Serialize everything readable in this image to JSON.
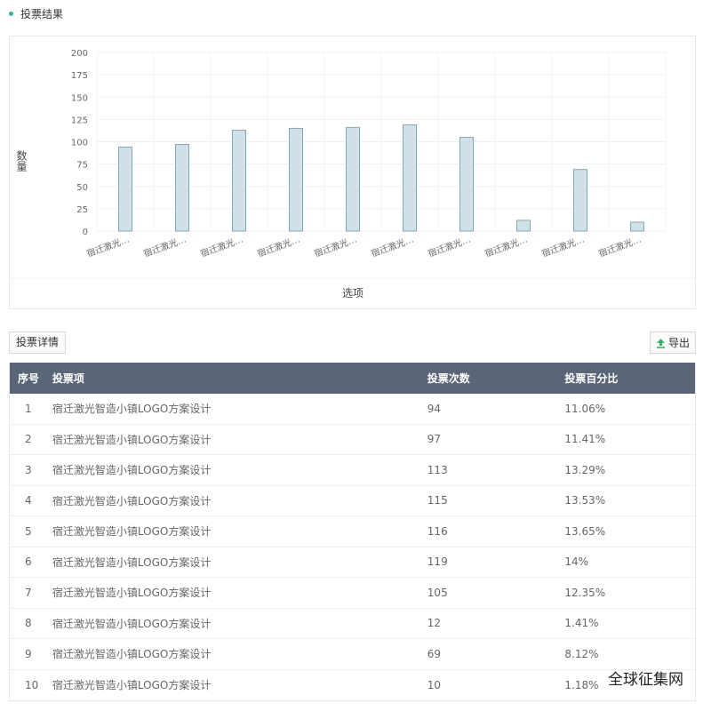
{
  "header": {
    "title": "投票结果"
  },
  "chart_data": {
    "type": "bar",
    "categories": [
      "宿迁激光…",
      "宿迁激光…",
      "宿迁激光…",
      "宿迁激光…",
      "宿迁激光…",
      "宿迁激光…",
      "宿迁激光…",
      "宿迁激光…",
      "宿迁激光…",
      "宿迁激光…"
    ],
    "values": [
      94,
      97,
      113,
      115,
      116,
      119,
      105,
      12,
      69,
      10
    ],
    "ylabel": "数量",
    "xlabel": "选项",
    "ylim": [
      0,
      200
    ],
    "yticks": [
      0,
      25,
      50,
      75,
      100,
      125,
      150,
      175,
      200
    ],
    "grid": true,
    "bar_fill": "#cfe0e8",
    "bar_stroke": "#8aa7b5"
  },
  "tabs": {
    "detail_label": "投票详情"
  },
  "toolbar": {
    "export_label": "导出",
    "export_icon": "upload-icon",
    "export_icon_color": "#3cb16a"
  },
  "table": {
    "headers": [
      "序号",
      "投票项",
      "投票次数",
      "投票百分比"
    ],
    "header_bg": "#5a6678",
    "rows": [
      [
        "1",
        "宿迁激光智造小镇LOGO方案设计",
        "94",
        "11.06%"
      ],
      [
        "2",
        "宿迁激光智造小镇LOGO方案设计",
        "97",
        "11.41%"
      ],
      [
        "3",
        "宿迁激光智造小镇LOGO方案设计",
        "113",
        "13.29%"
      ],
      [
        "4",
        "宿迁激光智造小镇LOGO方案设计",
        "115",
        "13.53%"
      ],
      [
        "5",
        "宿迁激光智造小镇LOGO方案设计",
        "116",
        "13.65%"
      ],
      [
        "6",
        "宿迁激光智造小镇LOGO方案设计",
        "119",
        "14%"
      ],
      [
        "7",
        "宿迁激光智造小镇LOGO方案设计",
        "105",
        "12.35%"
      ],
      [
        "8",
        "宿迁激光智造小镇LOGO方案设计",
        "12",
        "1.41%"
      ],
      [
        "9",
        "宿迁激光智造小镇LOGO方案设计",
        "69",
        "8.12%"
      ],
      [
        "10",
        "宿迁激光智造小镇LOGO方案设计",
        "10",
        "1.18%"
      ]
    ]
  },
  "watermark": "全球征集网"
}
